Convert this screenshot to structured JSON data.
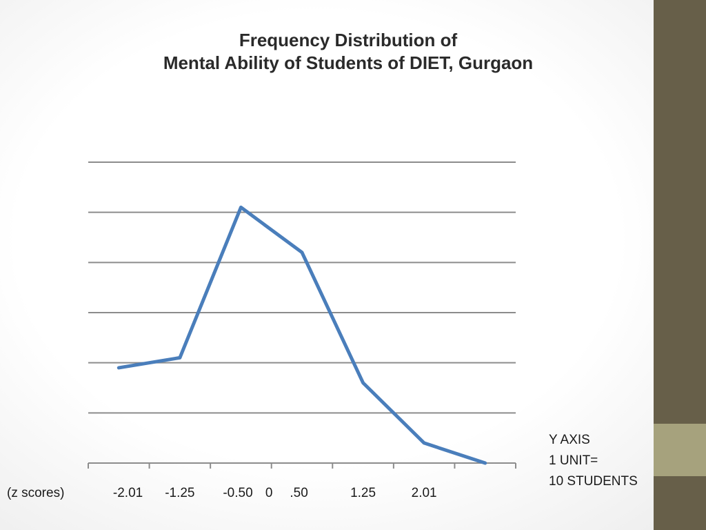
{
  "colors": {
    "side_bar": "#675F49",
    "side_bar_accent": "#A6A27D",
    "line": "#4A7EBB",
    "grid": "#8C8C8C",
    "text": "#1a1a1a"
  },
  "chart_data": {
    "type": "line",
    "title_lines": [
      "Frequency Distribution of",
      "Mental Ability of Students of DIET, Gurgaon"
    ],
    "x_prefix_label": "(z scores)",
    "tick_labels": [
      {
        "text": "-2.01",
        "at": 0.65
      },
      {
        "text": "-1.25",
        "at": 1.5
      },
      {
        "text": "-0.50",
        "at": 2.45
      },
      {
        "text": "0",
        "at": 2.96
      },
      {
        "text": ".50",
        "at": 3.45
      },
      {
        "text": "1.25",
        "at": 4.5
      },
      {
        "text": "2.01",
        "at": 5.5
      }
    ],
    "x_categories": 7,
    "y_gridlines": 6,
    "ylim": [
      0,
      6
    ],
    "series": [
      {
        "values": [
          1.9,
          2.1,
          5.1,
          4.2,
          1.6,
          0.4,
          0.0
        ]
      }
    ],
    "grid": true,
    "y_axis_note": [
      "Y AXIS",
      "1 UNIT=",
      "10 STUDENTS"
    ]
  }
}
